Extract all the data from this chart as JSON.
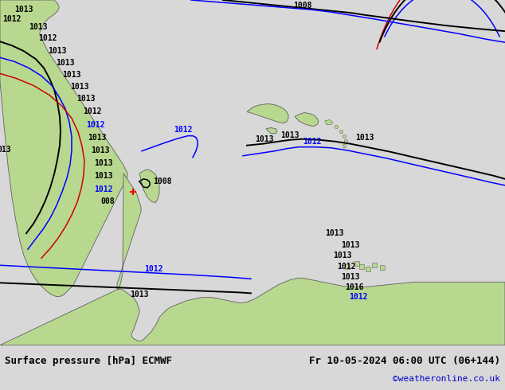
{
  "title_left": "Surface pressure [hPa] ECMWF",
  "title_right": "Fr 10-05-2024 06:00 UTC (06+144)",
  "credit": "©weatheronline.co.uk",
  "bg_color": "#d8d8d8",
  "map_bg_color": "#c8c8c8",
  "ocean_color": "#c8d4dc",
  "land_color": "#b8d890",
  "land_edge": "#606060",
  "figsize": [
    6.34,
    4.9
  ],
  "dpi": 100,
  "bottom_bar_color": "#e8e8e8",
  "title_fontsize": 9.0,
  "credit_fontsize": 8.0,
  "credit_color": "#0000cc",
  "isobar_black": "#000000",
  "isobar_blue": "#0000ff",
  "isobar_red": "#cc0000",
  "label_fontsize": 7.0
}
